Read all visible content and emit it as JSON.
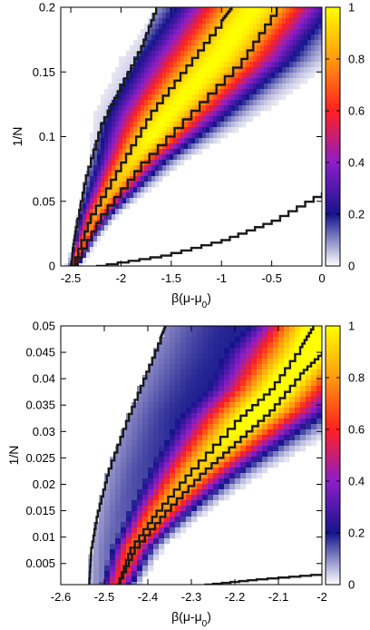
{
  "chart_data": [
    {
      "type": "heatmap",
      "title": "",
      "xlabel": "β(μ-μ",
      "xlabel_sub": "0",
      "xlabel_end": ")",
      "ylabel": "1/N",
      "xlim": [
        -2.6,
        0
      ],
      "ylim": [
        0,
        0.2
      ],
      "x_ticks": [
        -2.5,
        -2,
        -1.5,
        -1,
        -0.5,
        0
      ],
      "x_tick_labels": [
        "-2.5",
        "-2",
        "-1.5",
        "-1",
        "-0.5",
        "0"
      ],
      "y_ticks": [
        0,
        0.05,
        0.1,
        0.15,
        0.2
      ],
      "y_tick_labels": [
        "0",
        "0.05",
        "0.1",
        "0.15",
        "0.2"
      ],
      "colorbar": {
        "ticks": [
          0,
          0.2,
          0.4,
          0.6,
          0.8,
          1
        ],
        "tick_labels": [
          "0",
          "0.2",
          "0.4",
          "0.6",
          "0.8",
          "1"
        ],
        "colors": [
          "#ffffff",
          "#14148c",
          "#8c1ec8",
          "#ff2020",
          "#ff9a10",
          "#ffff00"
        ]
      },
      "bands": [
        {
          "x_start": -2.5,
          "x_peak": -2.5,
          "x_width": 0.03
        },
        {
          "x_start": -2.5,
          "x_peak": -0.9,
          "x_width": 0.22
        }
      ],
      "boundary_curves": [
        {
          "name": "left",
          "points": [
            [
              -2.49,
              0
            ],
            [
              -2.485,
              0.01
            ],
            [
              -2.45,
              0.03
            ],
            [
              -2.35,
              0.07
            ],
            [
              -2.2,
              0.11
            ],
            [
              -2.0,
              0.14
            ],
            [
              -1.8,
              0.17
            ],
            [
              -1.65,
              0.2
            ]
          ]
        },
        {
          "name": "inner-left",
          "points": [
            [
              -2.49,
              0
            ],
            [
              -2.3,
              0.04
            ],
            [
              -2.0,
              0.08
            ],
            [
              -1.7,
              0.12
            ],
            [
              -1.35,
              0.155
            ],
            [
              -1.0,
              0.19
            ],
            [
              -0.9,
              0.2
            ]
          ]
        },
        {
          "name": "inner-right",
          "points": [
            [
              -2.48,
              0
            ],
            [
              -2.2,
              0.04
            ],
            [
              -1.8,
              0.08
            ],
            [
              -1.3,
              0.12
            ],
            [
              -0.8,
              0.16
            ],
            [
              -0.45,
              0.2
            ]
          ]
        },
        {
          "name": "bottom",
          "points": [
            [
              -2.25,
              0
            ],
            [
              -1.6,
              0.008
            ],
            [
              -1.0,
              0.02
            ],
            [
              -0.5,
              0.035
            ],
            [
              0,
              0.057
            ]
          ]
        }
      ]
    },
    {
      "type": "heatmap",
      "title": "",
      "xlabel": "β(μ-μ",
      "xlabel_sub": "0",
      "xlabel_end": ")",
      "ylabel": "1/N",
      "xlim": [
        -2.6,
        -2.0
      ],
      "ylim": [
        0.001,
        0.05
      ],
      "x_ticks": [
        -2.6,
        -2.5,
        -2.4,
        -2.3,
        -2.2,
        -2.1,
        -2
      ],
      "x_tick_labels": [
        "-2.6",
        "-2.5",
        "-2.4",
        "-2.3",
        "-2.2",
        "-2.1",
        "-2"
      ],
      "y_ticks": [
        0.005,
        0.01,
        0.015,
        0.02,
        0.025,
        0.03,
        0.035,
        0.04,
        0.045,
        0.05
      ],
      "y_tick_labels": [
        "0.005",
        "0.01",
        "0.015",
        "0.02",
        "0.025",
        "0.03",
        "0.035",
        "0.04",
        "0.045",
        "0.05"
      ],
      "colorbar": {
        "ticks": [
          0,
          0.2,
          0.4,
          0.6,
          0.8,
          1
        ],
        "tick_labels": [
          "0",
          "0.2",
          "0.4",
          "0.6",
          "0.8",
          "1"
        ],
        "colors": [
          "#ffffff",
          "#14148c",
          "#8c1ec8",
          "#ff2020",
          "#ff9a10",
          "#ffff00"
        ]
      },
      "boundary_curves": [
        {
          "name": "left",
          "points": [
            [
              -2.535,
              0.001
            ],
            [
              -2.53,
              0.008
            ],
            [
              -2.515,
              0.015
            ],
            [
              -2.49,
              0.023
            ],
            [
              -2.45,
              0.032
            ],
            [
              -2.41,
              0.04
            ],
            [
              -2.37,
              0.048
            ],
            [
              -2.36,
              0.05
            ]
          ]
        },
        {
          "name": "inner-left",
          "points": [
            [
              -2.47,
              0.001
            ],
            [
              -2.44,
              0.008
            ],
            [
              -2.38,
              0.015
            ],
            [
              -2.3,
              0.023
            ],
            [
              -2.2,
              0.032
            ],
            [
              -2.12,
              0.038
            ],
            [
              -2.05,
              0.046
            ],
            [
              -2.02,
              0.05
            ]
          ]
        },
        {
          "name": "inner-right",
          "points": [
            [
              -2.47,
              0.001
            ],
            [
              -2.43,
              0.008
            ],
            [
              -2.36,
              0.015
            ],
            [
              -2.28,
              0.022
            ],
            [
              -2.2,
              0.028
            ],
            [
              -2.12,
              0.034
            ],
            [
              -2.05,
              0.041
            ],
            [
              -2.0,
              0.045
            ]
          ]
        },
        {
          "name": "bottom",
          "points": [
            [
              -2.27,
              0.001
            ],
            [
              -2.15,
              0.002
            ],
            [
              -2.0,
              0.003
            ]
          ]
        }
      ]
    }
  ]
}
